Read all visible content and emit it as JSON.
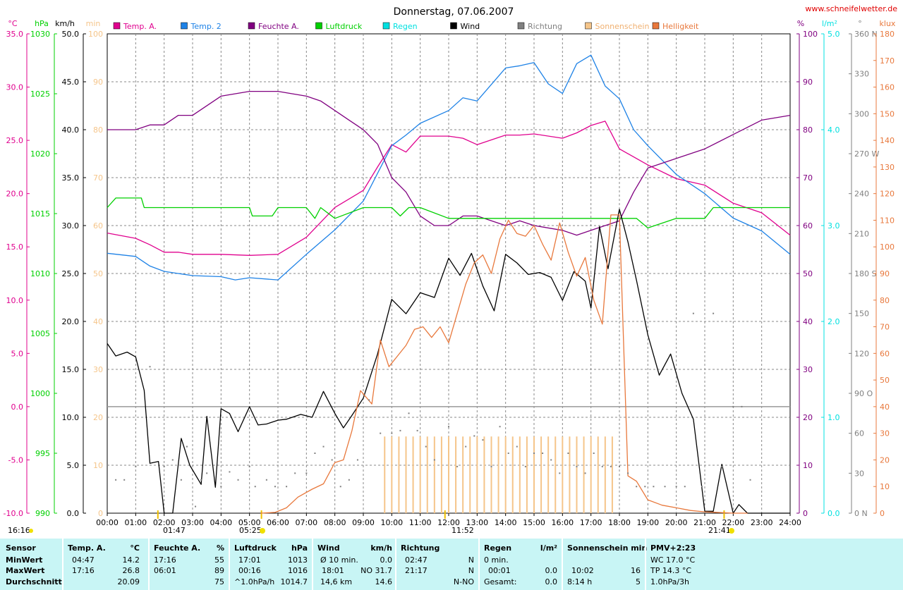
{
  "title": "Donnerstag, 07.06.2007",
  "website": "www.schneifelwetter.de",
  "colors": {
    "temp_a": "#e0008e",
    "temp_2": "#1e82e6",
    "feuchte": "#800080",
    "luftdruck": "#00d000",
    "regen": "#00e0e0",
    "wind": "#000000",
    "richtung": "#808080",
    "sonnenschein": "#f5c58a",
    "helligkeit": "#e8783c"
  },
  "axis_units": {
    "temp": "°C",
    "hpa": "hPa",
    "kmh": "km/h",
    "min": "min",
    "pct": "%",
    "lm2": "l/m²",
    "deg": "°",
    "klux": "klux"
  },
  "legend": [
    {
      "label": "Temp. A.",
      "color": "#e0008e"
    },
    {
      "label": "Temp. 2",
      "color": "#1e82e6"
    },
    {
      "label": "Feuchte A.",
      "color": "#800080"
    },
    {
      "label": "Luftdruck",
      "color": "#00d000"
    },
    {
      "label": "Regen",
      "color": "#00e0e0"
    },
    {
      "label": "Wind",
      "color": "#000000"
    },
    {
      "label": "Richtung",
      "color": "#808080"
    },
    {
      "label": "Sonnenschein",
      "color": "#f5c58a"
    },
    {
      "label": "Helligkeit",
      "color": "#e8783c"
    }
  ],
  "chart_data": {
    "type": "line",
    "x_unit": "hours",
    "xlim": [
      0,
      24
    ],
    "x_ticks": [
      "00:00",
      "01:00",
      "02:00",
      "03:00",
      "04:00",
      "05:00",
      "06:00",
      "07:00",
      "08:00",
      "09:00",
      "10:00",
      "11:00",
      "12:00",
      "13:00",
      "14:00",
      "15:00",
      "16:00",
      "17:00",
      "18:00",
      "19:00",
      "20:00",
      "21:00",
      "22:00",
      "23:00",
      "24:00"
    ],
    "axes": {
      "temp": {
        "range": [
          -10,
          35
        ],
        "ticks": [
          "35.0",
          "30.0",
          "25.0",
          "20.0",
          "15.0",
          "10.0",
          "5.0",
          "0.0",
          "-5.0",
          "-10.0"
        ]
      },
      "hpa": {
        "range": [
          990,
          1030
        ],
        "ticks": [
          "1030",
          "1025",
          "1020",
          "1015",
          "1010",
          "1005",
          "1000",
          "995",
          "990"
        ]
      },
      "kmh": {
        "range": [
          0,
          50
        ],
        "ticks": [
          "50.0",
          "45.0",
          "40.0",
          "35.0",
          "30.0",
          "25.0",
          "20.0",
          "15.0",
          "10.0",
          "5.0",
          "0.0"
        ]
      },
      "min": {
        "range": [
          0,
          100
        ],
        "ticks": [
          "100",
          "90",
          "80",
          "70",
          "60",
          "50",
          "40",
          "30",
          "20",
          "10",
          "0"
        ]
      },
      "pct": {
        "range": [
          0,
          100
        ],
        "ticks": [
          "100",
          "90",
          "80",
          "70",
          "60",
          "50",
          "40",
          "30",
          "20",
          "10",
          "0"
        ]
      },
      "lm2": {
        "range": [
          0,
          5
        ],
        "ticks": [
          "5.0",
          "4.0",
          "3.0",
          "2.0",
          "1.0",
          "0.0"
        ]
      },
      "deg": {
        "range": [
          0,
          360
        ],
        "ticks": [
          {
            "v": 360,
            "t": "360 N"
          },
          {
            "v": 330,
            "t": "330"
          },
          {
            "v": 300,
            "t": "300"
          },
          {
            "v": 270,
            "t": "270 W"
          },
          {
            "v": 240,
            "t": "240"
          },
          {
            "v": 210,
            "t": "210"
          },
          {
            "v": 180,
            "t": "180 S"
          },
          {
            "v": 150,
            "t": "150"
          },
          {
            "v": 120,
            "t": "120"
          },
          {
            "v": 90,
            "t": "90 O"
          },
          {
            "v": 60,
            "t": "60"
          },
          {
            "v": 30,
            "t": "30"
          },
          {
            "v": 0,
            "t": "0 N"
          }
        ]
      },
      "klux": {
        "range": [
          0,
          180
        ],
        "ticks": [
          "180",
          "170",
          "160",
          "150",
          "140",
          "130",
          "120",
          "110",
          "100",
          "90",
          "80",
          "70",
          "60",
          "50",
          "40",
          "30",
          "20",
          "10",
          "0"
        ]
      }
    },
    "series": [
      {
        "name": "Temp. A.",
        "axis": "temp",
        "color": "#e0008e",
        "x": [
          0,
          1,
          1.5,
          2,
          2.5,
          3,
          4,
          5,
          6,
          7,
          8,
          9,
          9.5,
          10,
          10.5,
          11,
          12,
          12.5,
          13,
          14,
          14.5,
          15,
          16,
          16.5,
          17,
          17.5,
          18,
          19,
          20,
          21,
          22,
          23,
          24
        ],
        "y": [
          16.3,
          15.8,
          15.2,
          14.5,
          14.5,
          14.3,
          14.3,
          14.2,
          14.3,
          15.9,
          18.7,
          20.3,
          22.5,
          24.6,
          23.9,
          25.4,
          25.4,
          25.2,
          24.6,
          25.5,
          25.5,
          25.6,
          25.2,
          25.7,
          26.4,
          26.8,
          24.2,
          22.7,
          21.4,
          20.8,
          19.1,
          18.2,
          16.1
        ]
      },
      {
        "name": "Temp. 2",
        "axis": "temp",
        "color": "#1e82e6",
        "x": [
          0,
          1,
          1.5,
          2,
          2.5,
          3,
          4,
          4.5,
          5,
          6,
          7,
          8,
          9,
          10,
          10.5,
          11,
          12,
          12.5,
          13,
          14,
          14.5,
          15,
          15.5,
          16,
          16.5,
          17,
          17.5,
          18,
          18.5,
          19,
          20,
          21,
          22,
          23,
          24
        ],
        "y": [
          14.4,
          14.1,
          13.2,
          12.7,
          12.5,
          12.3,
          12.2,
          11.9,
          12.1,
          11.9,
          14.3,
          16.6,
          19.3,
          24.5,
          25.5,
          26.6,
          27.8,
          29.0,
          28.7,
          31.8,
          32.0,
          32.3,
          30.3,
          29.4,
          32.2,
          33.0,
          30.1,
          28.9,
          26.0,
          24.5,
          21.8,
          20.0,
          17.7,
          16.5,
          14.3
        ]
      },
      {
        "name": "Feuchte A.",
        "axis": "pct",
        "color": "#800080",
        "x": [
          0,
          1,
          1.5,
          2,
          2.5,
          3,
          4,
          5,
          5.5,
          6,
          7,
          7.5,
          8,
          8.5,
          9,
          9.5,
          10,
          10.5,
          11,
          11.5,
          12,
          12.5,
          13,
          14,
          14.5,
          15,
          16,
          16.5,
          17,
          17.5,
          18,
          18.5,
          19,
          20,
          21,
          22,
          23,
          24
        ],
        "y": [
          80,
          80,
          81,
          81,
          83,
          83,
          87,
          88,
          88,
          88,
          87,
          86,
          84,
          82,
          80,
          77,
          70,
          67,
          62,
          60,
          60,
          62,
          62,
          60,
          61,
          60,
          59,
          58,
          59,
          60,
          61,
          67,
          72,
          74,
          76,
          79,
          82,
          83
        ]
      },
      {
        "name": "Luftdruck",
        "axis": "hpa",
        "color": "#00d000",
        "x": [
          0,
          0.3,
          0.8,
          1.2,
          1.3,
          2,
          3,
          4,
          5,
          5.1,
          5.8,
          6,
          7,
          7.3,
          7.5,
          8,
          9,
          9.5,
          10,
          10.3,
          10.6,
          11,
          12,
          13,
          14,
          15,
          16,
          17,
          17.4,
          18,
          18.6,
          19,
          20,
          21,
          21.3,
          22,
          23,
          24
        ],
        "y": [
          1015.5,
          1016.3,
          1016.3,
          1016.3,
          1015.5,
          1015.5,
          1015.5,
          1015.5,
          1015.5,
          1014.8,
          1014.8,
          1015.5,
          1015.5,
          1014.6,
          1015.5,
          1014.6,
          1015.5,
          1015.5,
          1015.5,
          1014.8,
          1015.5,
          1015.5,
          1014.6,
          1014.6,
          1014.6,
          1014.6,
          1014.6,
          1014.6,
          1014.6,
          1014.6,
          1014.6,
          1013.8,
          1014.6,
          1014.6,
          1015.5,
          1015.5,
          1015.5,
          1015.5
        ]
      },
      {
        "name": "Wind",
        "axis": "kmh",
        "color": "#000000",
        "x": [
          0,
          0.3,
          0.7,
          1,
          1.3,
          1.5,
          1.8,
          2,
          2.3,
          2.6,
          2.9,
          3.3,
          3.5,
          3.8,
          4,
          4.3,
          4.6,
          5,
          5.3,
          5.6,
          6,
          6.3,
          6.8,
          7.2,
          7.6,
          8,
          8.3,
          8.6,
          9,
          9.5,
          10,
          10.5,
          11,
          11.5,
          12,
          12.4,
          12.8,
          13.2,
          13.6,
          14,
          14.4,
          14.8,
          15.2,
          15.6,
          16,
          16.4,
          16.8,
          17,
          17.3,
          17.6,
          18,
          18.3,
          18.6,
          19,
          19.4,
          19.8,
          20.2,
          20.6,
          21,
          21.3,
          21.6,
          22,
          22.2,
          22.5,
          23,
          23.5,
          24
        ],
        "y": [
          17.7,
          16.4,
          16.8,
          16.3,
          12.8,
          5.2,
          5.4,
          0,
          0,
          7.8,
          5.0,
          3.0,
          10.1,
          2.7,
          10.9,
          10.4,
          8.5,
          11.1,
          9.2,
          9.3,
          9.7,
          9.8,
          10.3,
          10.0,
          12.7,
          10.4,
          8.9,
          10.2,
          12.0,
          16.6,
          22.3,
          20.8,
          23.0,
          22.5,
          26.6,
          24.8,
          27.1,
          23.7,
          21.1,
          27.0,
          26.1,
          24.9,
          25.1,
          24.6,
          22.2,
          25.2,
          24.2,
          21.4,
          29.9,
          25.5,
          31.7,
          28.3,
          24.3,
          18.6,
          14.4,
          16.6,
          12.5,
          9.8,
          0.2,
          0.2,
          5.1,
          0,
          0.9,
          0,
          0,
          0,
          0
        ]
      },
      {
        "name": "Helligkeit",
        "axis": "klux",
        "color": "#e8783c",
        "x": [
          5.4,
          5.9,
          6.3,
          6.7,
          7.2,
          7.6,
          8,
          8.3,
          8.6,
          8.9,
          9.3,
          9.6,
          9.9,
          10.2,
          10.5,
          10.8,
          11.1,
          11.4,
          11.7,
          12,
          12.3,
          12.6,
          12.9,
          13.2,
          13.5,
          13.8,
          14.1,
          14.4,
          14.7,
          15,
          15.3,
          15.6,
          15.9,
          16.2,
          16.5,
          16.8,
          17.1,
          17.4,
          17.7,
          18,
          18.3,
          18.6,
          19,
          19.5,
          20,
          20.5,
          21,
          22,
          22.5
        ],
        "y": [
          0,
          0.3,
          2,
          6,
          9,
          11,
          19,
          20,
          31,
          46,
          41,
          65,
          55,
          59,
          63,
          69,
          70,
          66,
          70,
          64,
          75,
          86,
          94,
          97,
          90,
          103,
          110,
          105,
          104,
          108,
          101,
          95,
          109,
          98,
          89,
          96,
          80,
          71,
          112,
          112,
          14,
          12,
          5,
          3,
          2,
          1,
          0.5,
          0,
          0
        ]
      },
      {
        "name": "Sonnenschein",
        "axis": "min",
        "color": "#f5c58a",
        "type": "bar",
        "x_start": 9.75,
        "x_end": 17.85,
        "step": 0.25,
        "value": 16
      }
    ],
    "direction_points": {
      "name": "Richtung",
      "axis": "deg",
      "color": "#808080",
      "x": [
        0.3,
        0.6,
        1,
        1.5,
        2,
        2.3,
        2.6,
        2.8,
        3.1,
        3.3,
        3.5,
        4,
        4.3,
        4.6,
        5,
        5.2,
        5.6,
        5.9,
        6.3,
        6.6,
        7,
        7.3,
        7.6,
        7.9,
        8.2,
        8.5,
        8.8,
        9.2,
        9.6,
        10,
        10.3,
        10.6,
        10.9,
        11.2,
        11.5,
        12,
        12.3,
        12.6,
        12.9,
        13.2,
        13.5,
        13.8,
        14.1,
        14.4,
        14.7,
        15,
        15.3,
        15.6,
        15.9,
        16.2,
        16.5,
        16.8,
        17.1,
        17.4,
        17.7,
        18,
        18.3,
        18.6,
        18.9,
        19.2,
        19.6,
        20,
        20.3,
        20.6,
        20.9,
        21.3,
        21.6,
        22,
        22.3,
        22.6
      ],
      "y": [
        25,
        25,
        35,
        110,
        35,
        40,
        25,
        50,
        5,
        25,
        30,
        20,
        31,
        25,
        35,
        20,
        25,
        20,
        20,
        30,
        30,
        45,
        50,
        40,
        20,
        25,
        40,
        85,
        60,
        60,
        62,
        75,
        62,
        50,
        40,
        65,
        35,
        50,
        58,
        55,
        35,
        65,
        45,
        50,
        35,
        45,
        45,
        40,
        30,
        45,
        35,
        30,
        45,
        35,
        35,
        35,
        30,
        20,
        20,
        20,
        20,
        20,
        20,
        150,
        20,
        150,
        35,
        80,
        80,
        25
      ]
    }
  },
  "annotations": {
    "sunrise_label": "05:25",
    "sunset_label": "21:41",
    "moonrise_label": "16:16",
    "moonset_label": "01:47",
    "noon_label": "11:52"
  },
  "stats": {
    "sensor": {
      "header": "Sensor",
      "rows": [
        "MinWert",
        "MaxWert",
        "Durchschnitt"
      ]
    },
    "temp": {
      "header": "Temp. A.",
      "unit": "°C",
      "rows": [
        {
          "t": "04:47",
          "v": "14.2"
        },
        {
          "t": "17:16",
          "v": "26.8"
        },
        {
          "t": "",
          "v": "20.09"
        }
      ]
    },
    "feuchte": {
      "header": "Feuchte A.",
      "unit": "%",
      "rows": [
        {
          "t": "17:16",
          "v": "55"
        },
        {
          "t": "06:01",
          "v": "89"
        },
        {
          "t": "",
          "v": "75"
        }
      ]
    },
    "luftdruck": {
      "header": "Luftdruck",
      "unit": "hPa",
      "rows": [
        {
          "t": "17:01",
          "v": "1013"
        },
        {
          "t": "00:16",
          "v": "1016"
        },
        {
          "t": "^1.0hPa/h",
          "v": "1014.7"
        }
      ]
    },
    "wind": {
      "header": "Wind",
      "unit": "km/h",
      "rows": [
        {
          "t": "Ø 10 min.",
          "v": "0.0"
        },
        {
          "t": "18:01",
          "v": "NO 31.7"
        },
        {
          "t": "14,6 km",
          "v": "14.6"
        }
      ]
    },
    "richtung": {
      "header": "Richtung",
      "rows": [
        {
          "t": "02:47",
          "v": "N"
        },
        {
          "t": "21:17",
          "v": "N"
        },
        {
          "t": "",
          "v": "N-NO"
        }
      ]
    },
    "regen": {
      "header": "Regen",
      "unit": "l/m²",
      "rows": [
        {
          "t": "0 min.",
          "v": ""
        },
        {
          "t": "00:01",
          "v": "0.0"
        },
        {
          "t": "Gesamt:",
          "v": "0.0"
        }
      ]
    },
    "sonnenschein": {
      "header": "Sonnenschein min",
      "rows": [
        {
          "t": "",
          "v": ""
        },
        {
          "t": "10:02",
          "v": "16"
        },
        {
          "t": "8:14 h",
          "v": "5"
        }
      ]
    },
    "pmv": {
      "header": "PMV+2:23",
      "rows": [
        "WC 17.0 °C",
        "TP 14.3 °C",
        "1.0hPa/3h"
      ]
    }
  }
}
